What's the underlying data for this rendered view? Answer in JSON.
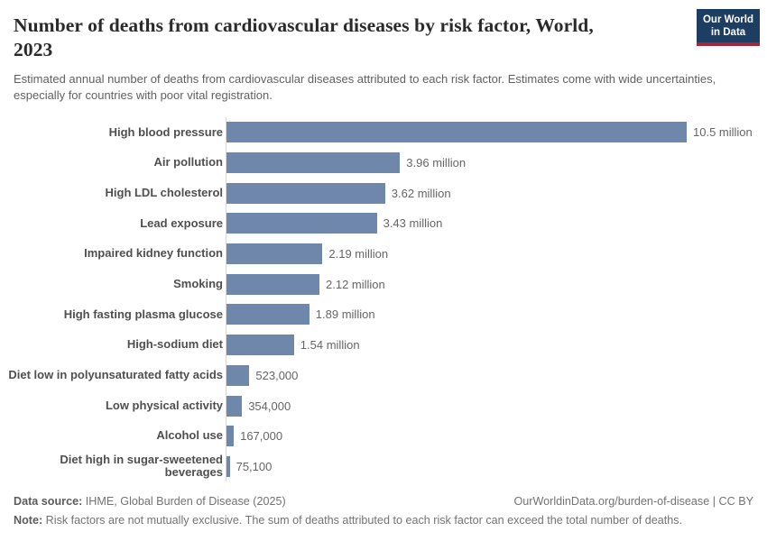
{
  "header": {
    "title_lines": [
      "Number of deaths from cardiovascular diseases by risk factor, World,",
      "2023"
    ],
    "subtitle": "Estimated annual number of deaths from cardiovascular diseases attributed to each risk factor. Estimates come with wide uncertainties, especially for countries with poor vital registration.",
    "logo": {
      "line1": "Our World",
      "line2": "in Data",
      "bg_color": "#1d3d63",
      "accent_color": "#a52639"
    }
  },
  "chart_data": {
    "type": "bar",
    "orientation": "horizontal",
    "title": "Number of deaths from cardiovascular diseases by risk factor, World, 2023",
    "xlabel": "",
    "ylabel": "",
    "unit": "deaths per year",
    "year": "2023",
    "grid": false,
    "legend": "none",
    "xlim": [
      0,
      10500000
    ],
    "bar_color": "#6e87ab",
    "axis_line_color": "#d9d9d9",
    "categories": [
      "High blood pressure",
      "Air pollution",
      "High LDL cholesterol",
      "Lead exposure",
      "Impaired kidney function",
      "Smoking",
      "High fasting plasma glucose",
      "High-sodium diet",
      "Diet low in polyunsaturated fatty acids",
      "Low physical activity",
      "Alcohol use",
      "Diet high in sugar-sweetened\nbeverages"
    ],
    "values": [
      10500000,
      3960000,
      3620000,
      3430000,
      2190000,
      2120000,
      1890000,
      1540000,
      523000,
      354000,
      167000,
      75100
    ],
    "value_labels": [
      "10.5 million",
      "3.96 million",
      "3.62 million",
      "3.43 million",
      "2.19 million",
      "2.12 million",
      "1.89 million",
      "1.54 million",
      "523,000",
      "354,000",
      "167,000",
      "75,100"
    ]
  },
  "footer": {
    "datasource_label": "Data source:",
    "datasource_value": " IHME, Global Burden of Disease (2025)",
    "attribution": "OurWorldinData.org/burden-of-disease | CC BY",
    "note_label": "Note:",
    "note_value": " Risk factors are not mutually exclusive. The sum of deaths attributed to each risk factor can exceed the total number of deaths."
  }
}
